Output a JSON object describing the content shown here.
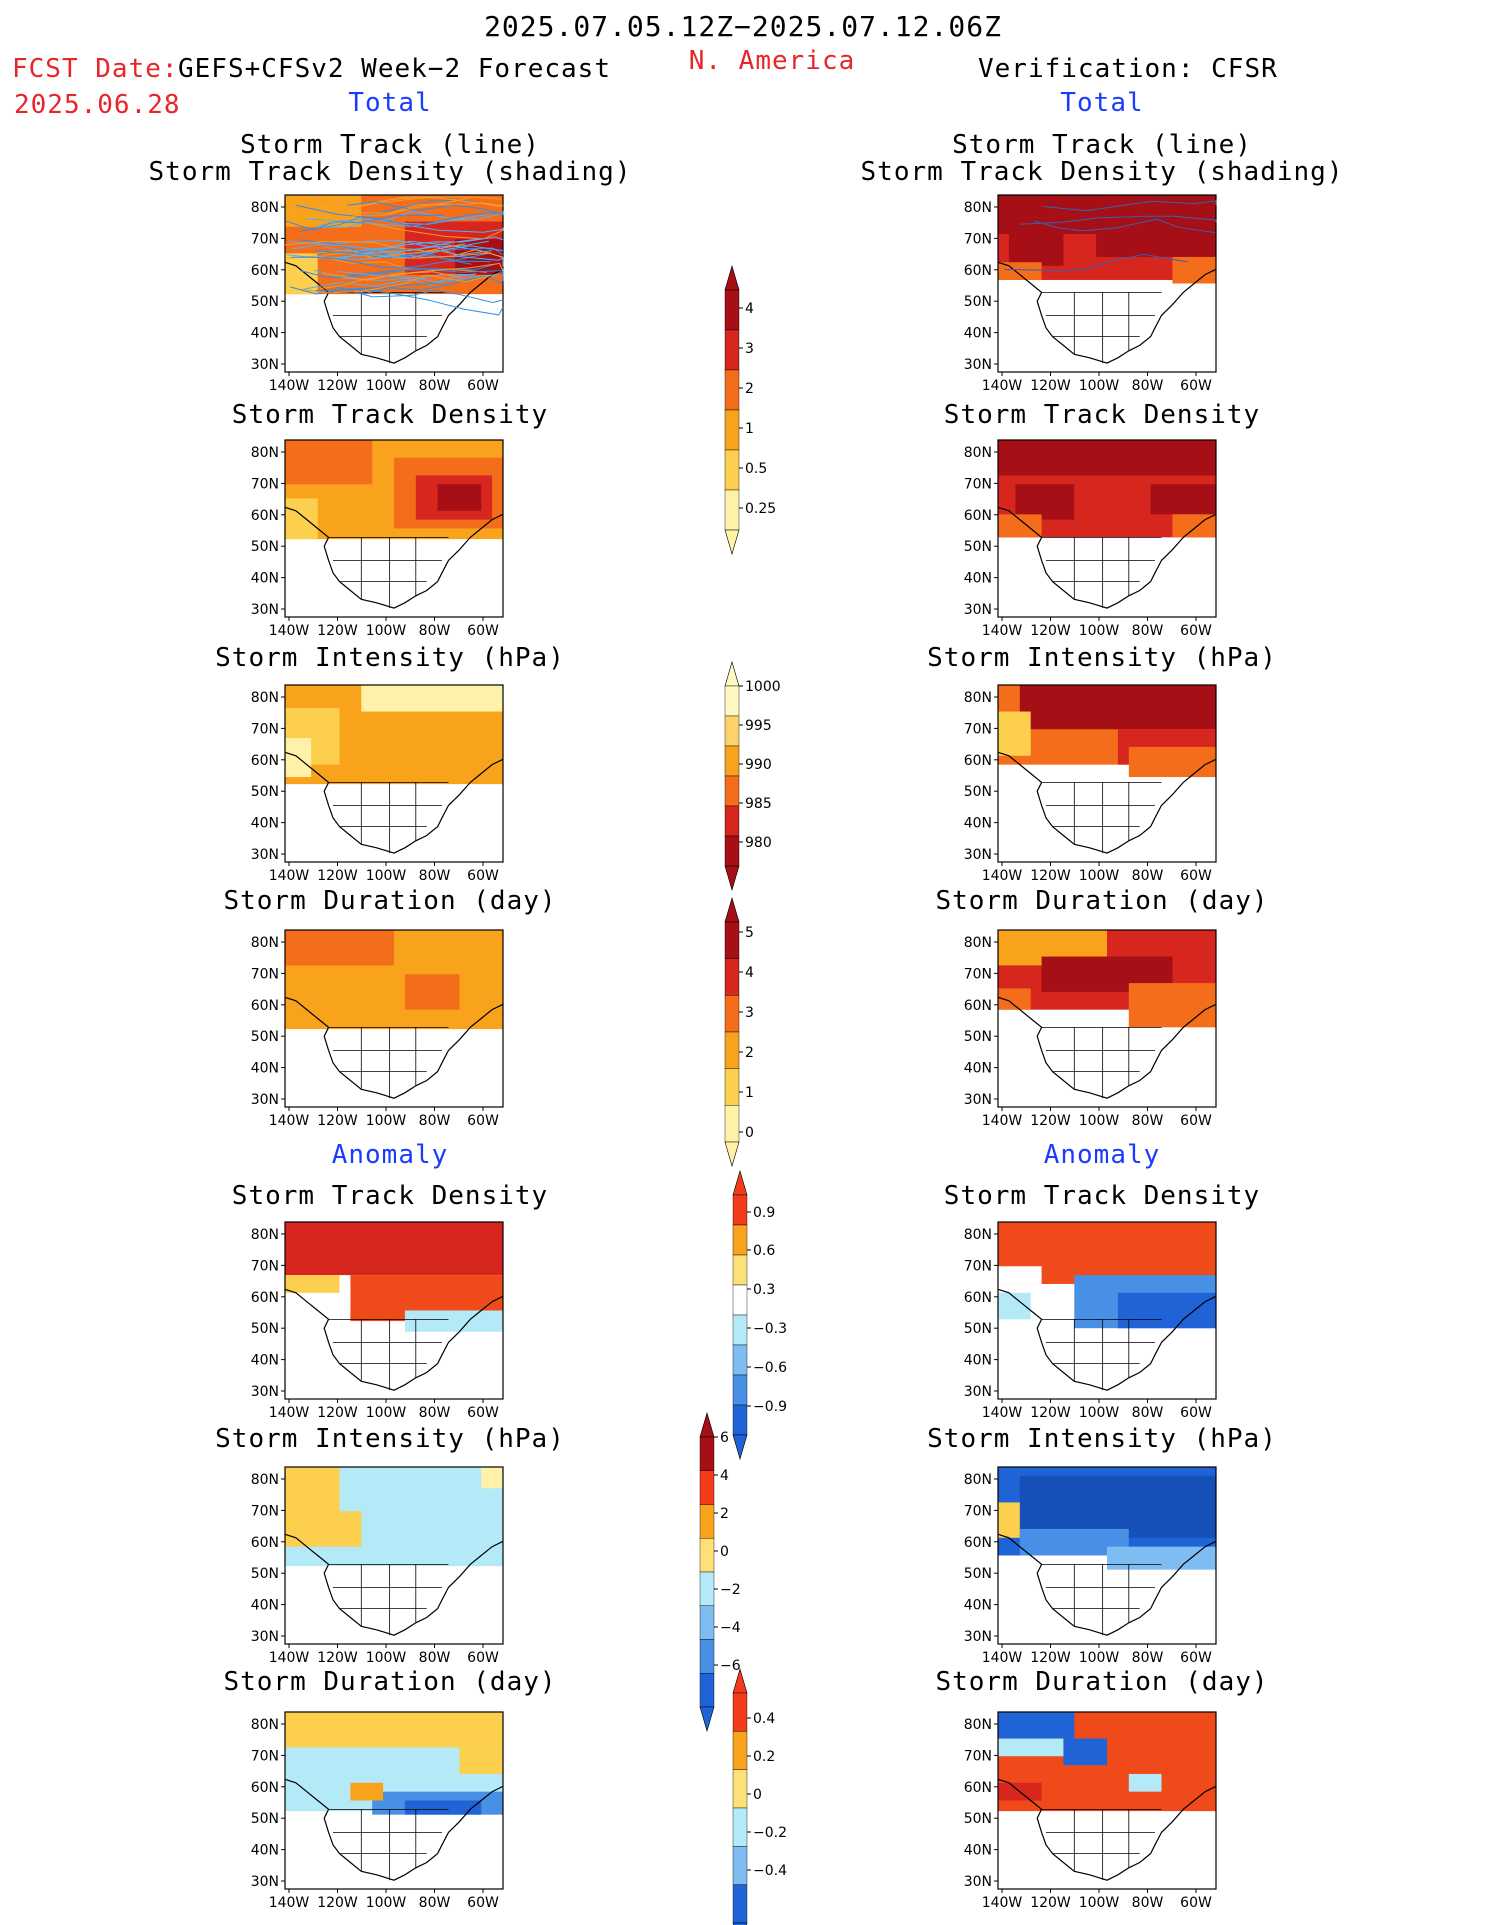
{
  "header": {
    "period": "2025.07.05.12Z−2025.07.12.06Z",
    "region": "N. America",
    "fcst_label": "FCST Date:",
    "model": "GEFS+CFSv2 Week−2 Forecast",
    "fcst_date": "2025.06.28",
    "verification": "Verification: CFSR"
  },
  "sections": {
    "total": "Total",
    "anomaly": "Anomaly"
  },
  "panels": {
    "r1": [
      "Storm Track (line)",
      "Storm Track Density (shading)"
    ],
    "r2": "Storm Track Density",
    "r3": "Storm Intensity (hPa)",
    "r4": "Storm Duration (day)",
    "r5": "Storm Track Density",
    "r6": "Storm Intensity (hPa)",
    "r7": "Storm Duration (day)"
  },
  "axes": {
    "lat_labels": [
      "80N",
      "70N",
      "60N",
      "50N",
      "40N",
      "30N"
    ],
    "lon_labels": [
      "140W",
      "120W",
      "100W",
      "80W",
      "60W"
    ]
  },
  "colorbars": {
    "density": {
      "labels": [
        "4",
        "3",
        "2",
        "1",
        "0.5",
        "0.25"
      ],
      "colors": [
        "#a50f15",
        "#d7261e",
        "#f46d1b",
        "#f9a21c",
        "#fccf4f",
        "#fff1a8"
      ]
    },
    "intensity": {
      "labels": [
        "1000",
        "995",
        "990",
        "985",
        "980"
      ],
      "colors": [
        "#fff8c0",
        "#fdd26a",
        "#f9a21c",
        "#f46d1b",
        "#d7261e",
        "#a50f15"
      ]
    },
    "duration": {
      "labels": [
        "5",
        "4",
        "3",
        "2",
        "1",
        "0"
      ],
      "colors": [
        "#a50f15",
        "#d7261e",
        "#f46d1b",
        "#f9a21c",
        "#fccf4f",
        "#fff1a8"
      ]
    },
    "density_anom": {
      "labels": [
        "0.9",
        "0.6",
        "0.3",
        "−0.3",
        "−0.6",
        "−0.9"
      ],
      "colors": [
        "#f23b1a",
        "#f9a21c",
        "#fde178",
        "#ffffff",
        "#b4eaf7",
        "#7fbcf2",
        "#4790e6",
        "#1f63d6"
      ]
    },
    "intensity_anom": {
      "labels": [
        "6",
        "4",
        "2",
        "0",
        "−2",
        "−4",
        "−6"
      ],
      "colors": [
        "#a50f15",
        "#f23b1a",
        "#f9a21c",
        "#fde178",
        "#b4eaf7",
        "#7fbcf2",
        "#4790e6",
        "#1f63d6"
      ]
    },
    "duration_anom": {
      "labels": [
        "0.4",
        "0.2",
        "0",
        "−0.2",
        "−0.4"
      ],
      "colors": [
        "#f23b1a",
        "#f9a21c",
        "#fde178",
        "#b4eaf7",
        "#7fbcf2",
        "#1f63d6"
      ]
    }
  },
  "map_colors": {
    "land_outline": "#000000",
    "forecast_tracks": [
      "#2f8ee8",
      "#5aaef5",
      "#f59a2c"
    ],
    "verification_tracks": "#3b5fb5"
  }
}
